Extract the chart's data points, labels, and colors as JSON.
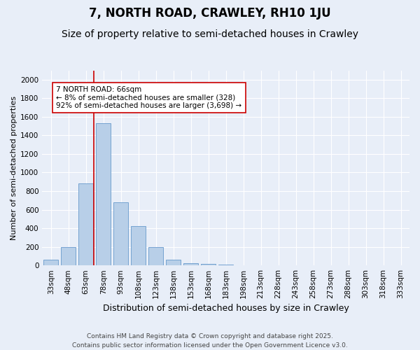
{
  "title": "7, NORTH ROAD, CRAWLEY, RH10 1JU",
  "subtitle": "Size of property relative to semi-detached houses in Crawley",
  "xlabel": "Distribution of semi-detached houses by size in Crawley",
  "ylabel": "Number of semi-detached properties",
  "categories": [
    "33sqm",
    "48sqm",
    "63sqm",
    "78sqm",
    "93sqm",
    "108sqm",
    "123sqm",
    "138sqm",
    "153sqm",
    "168sqm",
    "183sqm",
    "198sqm",
    "213sqm",
    "228sqm",
    "243sqm",
    "258sqm",
    "273sqm",
    "288sqm",
    "303sqm",
    "318sqm",
    "333sqm"
  ],
  "values": [
    65,
    200,
    880,
    1530,
    680,
    420,
    200,
    60,
    25,
    18,
    10,
    0,
    0,
    0,
    0,
    0,
    0,
    0,
    0,
    0,
    0
  ],
  "bar_color": "#b8cfe8",
  "bar_edge_color": "#6699cc",
  "bg_color": "#e8eef8",
  "grid_color": "#ffffff",
  "vline_color": "#cc0000",
  "vline_pos": 2.45,
  "annotation_text": "7 NORTH ROAD: 66sqm\n← 8% of semi-detached houses are smaller (328)\n92% of semi-detached houses are larger (3,698) →",
  "annotation_box_color": "#ffffff",
  "annotation_box_edge": "#cc0000",
  "ylim": [
    0,
    2100
  ],
  "yticks": [
    0,
    200,
    400,
    600,
    800,
    1000,
    1200,
    1400,
    1600,
    1800,
    2000
  ],
  "footer": "Contains HM Land Registry data © Crown copyright and database right 2025.\nContains public sector information licensed under the Open Government Licence v3.0.",
  "title_fontsize": 12,
  "subtitle_fontsize": 10,
  "xlabel_fontsize": 9,
  "ylabel_fontsize": 8,
  "tick_fontsize": 7.5,
  "annotation_fontsize": 7.5,
  "footer_fontsize": 6.5
}
